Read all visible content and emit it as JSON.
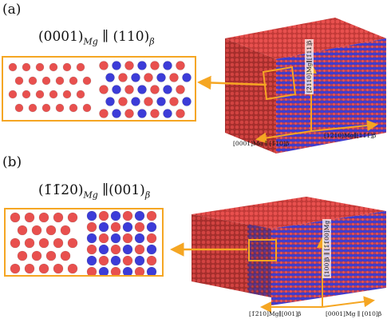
{
  "panel_a": {
    "label": "(a)",
    "plane": "(0001)Mg ∥ (110)β",
    "plane_left": "(0001)",
    "plane_left_sub": "Mg",
    "plane_mid": " ∥ (110)",
    "plane_right_sub": "β",
    "dir_vertical": "[2̄110]Mg∥[1̄11]β",
    "dir_bottom_left": "[0001]Mg ∥ [1̄10]β",
    "dir_bottom_right": "[12̄10]Mg∥[11̄1̄]β"
  },
  "panel_b": {
    "label": "(b)",
    "plane": "(1̄1̄20)Mg ∥(001)β",
    "plane_left": "(1̄1̄20)",
    "plane_left_sub": "Mg",
    "plane_mid": " ∥(001)",
    "plane_right_sub": "β",
    "dir_vertical": "[100]β ∥ [1̄1̄00]Mg",
    "dir_bottom_left": "[1̄2̄10]Mg∥[001]β",
    "dir_bottom_right": "[0001]Mg ∥ [010]β"
  },
  "colors": {
    "mg_atom": "#e8504e",
    "beta_atom": "#3c3cd8",
    "highlight": "#f5a623"
  }
}
